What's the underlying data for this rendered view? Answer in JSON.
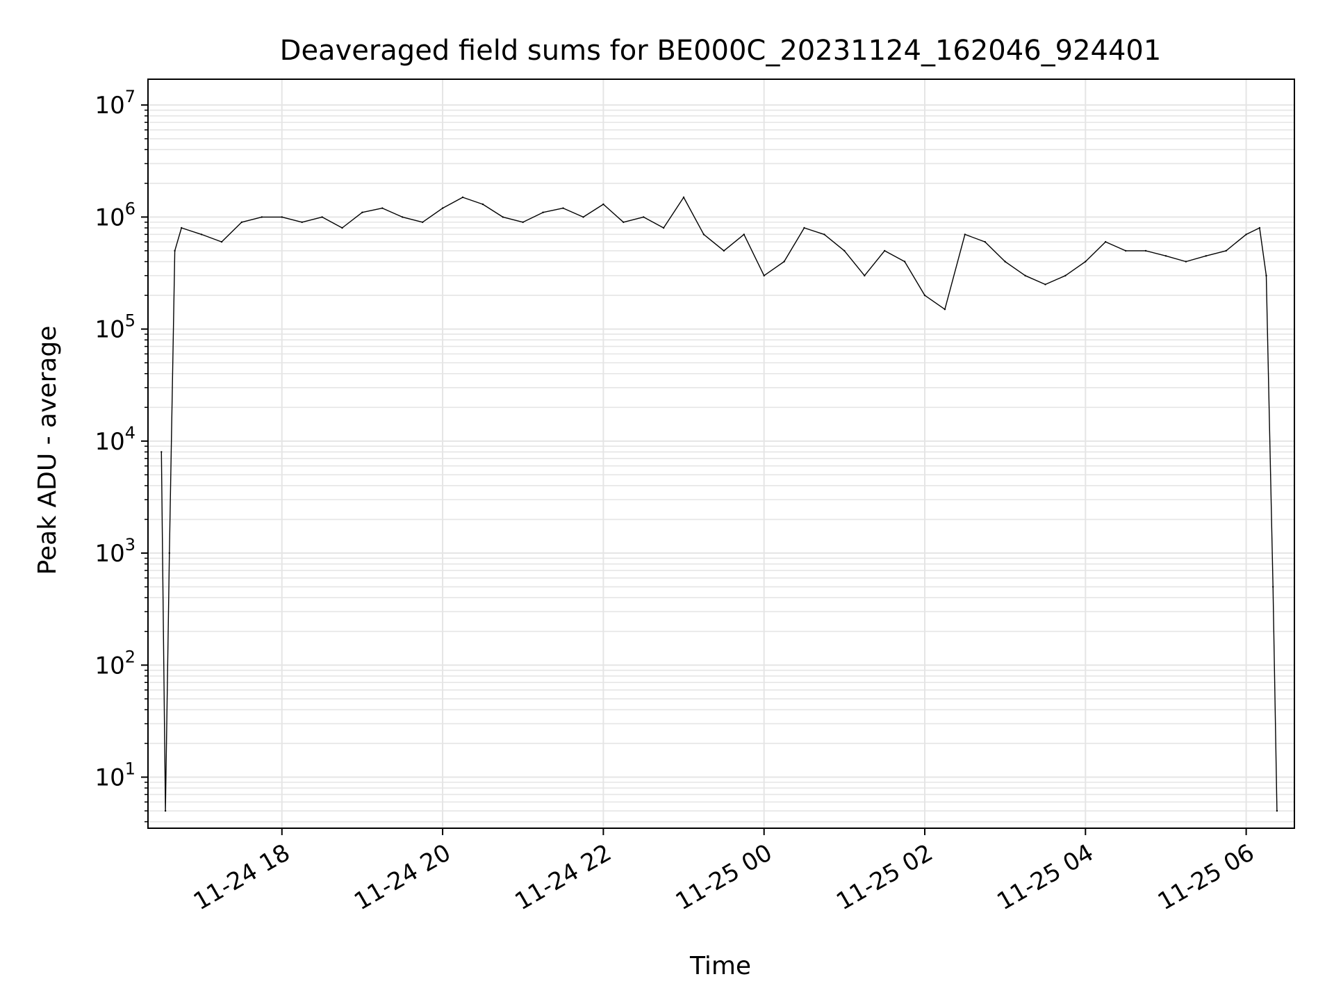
{
  "chart_data": {
    "type": "line",
    "title": "Deaveraged field sums for BE000C_20231124_162046_924401",
    "xlabel": "Time",
    "ylabel": "Peak ADU - average",
    "yscale": "log",
    "ylim": [
      3.5,
      17000000
    ],
    "xlim": [
      "2023-11-24 16:20",
      "2023-11-25 06:36"
    ],
    "grid": true,
    "line_color": "#000000",
    "grid_color": "#e5e5e5",
    "x_ticks": [
      {
        "t": "2023-11-24 18:00",
        "label": "11-24 18"
      },
      {
        "t": "2023-11-24 20:00",
        "label": "11-24 20"
      },
      {
        "t": "2023-11-24 22:00",
        "label": "11-24 22"
      },
      {
        "t": "2023-11-25 00:00",
        "label": "11-25 00"
      },
      {
        "t": "2023-11-25 02:00",
        "label": "11-25 02"
      },
      {
        "t": "2023-11-25 04:00",
        "label": "11-25 04"
      },
      {
        "t": "2023-11-25 06:00",
        "label": "11-25 06"
      }
    ],
    "y_ticks": [
      {
        "value": 10,
        "base": "10",
        "exp": "1"
      },
      {
        "value": 100,
        "base": "10",
        "exp": "2"
      },
      {
        "value": 1000,
        "base": "10",
        "exp": "3"
      },
      {
        "value": 10000,
        "base": "10",
        "exp": "4"
      },
      {
        "value": 100000,
        "base": "10",
        "exp": "5"
      },
      {
        "value": 1000000,
        "base": "10",
        "exp": "6"
      },
      {
        "value": 10000000,
        "base": "10",
        "exp": "7"
      }
    ],
    "series": [
      {
        "x": [
          "2023-11-24 16:30",
          "2023-11-24 16:33",
          "2023-11-24 16:36",
          "2023-11-24 16:40",
          "2023-11-24 16:45",
          "2023-11-24 17:00",
          "2023-11-24 17:15",
          "2023-11-24 17:30",
          "2023-11-24 17:45",
          "2023-11-24 18:00",
          "2023-11-24 18:15",
          "2023-11-24 18:30",
          "2023-11-24 18:45",
          "2023-11-24 19:00",
          "2023-11-24 19:15",
          "2023-11-24 19:30",
          "2023-11-24 19:45",
          "2023-11-24 20:00",
          "2023-11-24 20:15",
          "2023-11-24 20:30",
          "2023-11-24 20:45",
          "2023-11-24 21:00",
          "2023-11-24 21:15",
          "2023-11-24 21:30",
          "2023-11-24 21:45",
          "2023-11-24 22:00",
          "2023-11-24 22:15",
          "2023-11-24 22:30",
          "2023-11-24 22:45",
          "2023-11-24 23:00",
          "2023-11-24 23:15",
          "2023-11-24 23:30",
          "2023-11-24 23:45",
          "2023-11-25 00:00",
          "2023-11-25 00:15",
          "2023-11-25 00:30",
          "2023-11-25 00:45",
          "2023-11-25 01:00",
          "2023-11-25 01:15",
          "2023-11-25 01:30",
          "2023-11-25 01:45",
          "2023-11-25 02:00",
          "2023-11-25 02:15",
          "2023-11-25 02:30",
          "2023-11-25 02:45",
          "2023-11-25 03:00",
          "2023-11-25 03:15",
          "2023-11-25 03:30",
          "2023-11-25 03:45",
          "2023-11-25 04:00",
          "2023-11-25 04:15",
          "2023-11-25 04:30",
          "2023-11-25 04:45",
          "2023-11-25 05:00",
          "2023-11-25 05:15",
          "2023-11-25 05:30",
          "2023-11-25 05:45",
          "2023-11-25 06:00",
          "2023-11-25 06:10",
          "2023-11-25 06:15",
          "2023-11-25 06:20",
          "2023-11-25 06:23"
        ],
        "y": [
          8000,
          5,
          1000,
          500000,
          800000,
          700000,
          600000,
          900000,
          1000000,
          1000000,
          900000,
          1000000,
          800000,
          1100000,
          1200000,
          1000000,
          900000,
          1200000,
          1500000,
          1300000,
          1000000,
          900000,
          1100000,
          1200000,
          1000000,
          1300000,
          900000,
          1000000,
          800000,
          1500000,
          700000,
          500000,
          700000,
          300000,
          400000,
          800000,
          700000,
          500000,
          300000,
          500000,
          400000,
          200000,
          150000,
          700000,
          600000,
          400000,
          300000,
          250000,
          300000,
          400000,
          600000,
          500000,
          500000,
          450000,
          400000,
          450000,
          500000,
          700000,
          800000,
          300000,
          500,
          5
        ]
      }
    ]
  }
}
